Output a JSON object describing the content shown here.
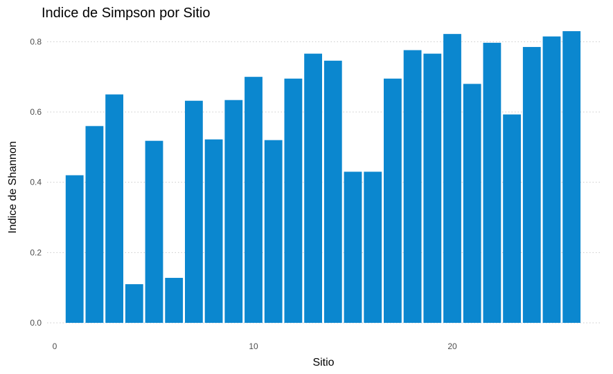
{
  "chart_data": {
    "type": "bar",
    "title": "Indice de Simpson por Sitio",
    "xlabel": "Sitio",
    "ylabel": "Indice de Shannon",
    "x": [
      1,
      2,
      3,
      4,
      5,
      6,
      7,
      8,
      9,
      10,
      11,
      12,
      13,
      14,
      15,
      16,
      17,
      18,
      19,
      20,
      21,
      22,
      23,
      24,
      25,
      26
    ],
    "values": [
      0.42,
      0.56,
      0.65,
      0.11,
      0.518,
      0.128,
      0.632,
      0.522,
      0.634,
      0.7,
      0.52,
      0.695,
      0.766,
      0.746,
      0.43,
      0.43,
      0.695,
      0.776,
      0.766,
      0.822,
      0.68,
      0.797,
      0.593,
      0.785,
      0.815,
      0.83
    ],
    "xlim": [
      0,
      26.5
    ],
    "ylim": [
      0,
      0.84
    ],
    "x_ticks": [
      0,
      10,
      20
    ],
    "x_tick_labels": [
      "0",
      "10",
      "20"
    ],
    "y_ticks": [
      0,
      0.2,
      0.4,
      0.6,
      0.8
    ],
    "y_tick_labels": [
      "0.0",
      "0.2",
      "0.4",
      "0.6",
      "0.8"
    ],
    "bar_color": "#0b87cf",
    "grid": "horizontal dotted",
    "legend": "none"
  }
}
